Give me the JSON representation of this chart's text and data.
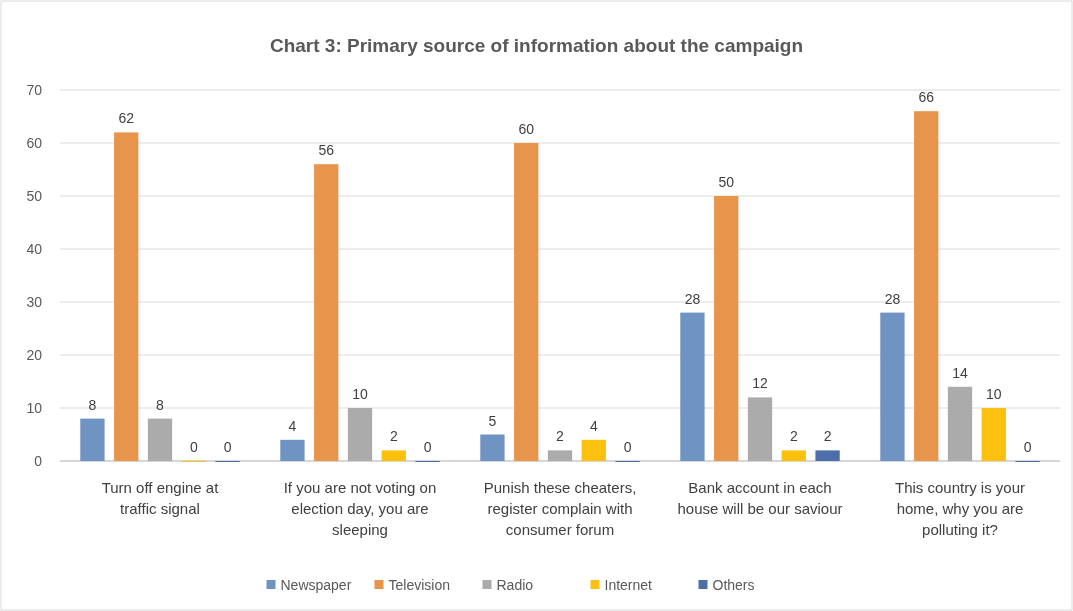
{
  "chart_data": {
    "type": "bar",
    "title": "Chart 3: Primary source of information about the campaign",
    "categories": [
      "Turn off engine at traffic signal",
      "If you are not voting on election day, you are sleeping",
      "Punish these cheaters, register complain with consumer forum",
      "Bank account in each house will be our saviour",
      "This country is your home, why you are polluting it?"
    ],
    "series": [
      {
        "name": "Newspaper",
        "color": "#6f94c3",
        "values": [
          8,
          4,
          5,
          28,
          28
        ]
      },
      {
        "name": "Television",
        "color": "#e8954c",
        "values": [
          62,
          56,
          60,
          50,
          66
        ]
      },
      {
        "name": "Radio",
        "color": "#ababab",
        "values": [
          8,
          10,
          2,
          12,
          14
        ]
      },
      {
        "name": "Internet",
        "color": "#fcc10e",
        "values": [
          0,
          2,
          4,
          2,
          10
        ]
      },
      {
        "name": "Others",
        "color": "#4d6ea8",
        "values": [
          0,
          0,
          0,
          2,
          0
        ]
      }
    ],
    "ylim": [
      0,
      70
    ],
    "yticks": [
      0,
      10,
      20,
      30,
      40,
      50,
      60,
      70
    ],
    "grid": "y",
    "legend": "bottom",
    "data_labels": true
  }
}
